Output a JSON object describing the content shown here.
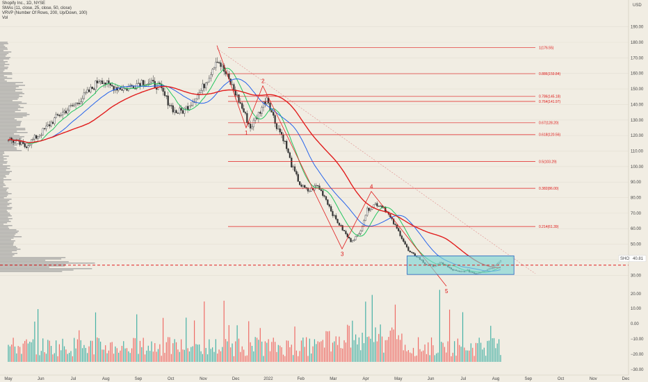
{
  "header": {
    "title": "Shopify Inc., 1D, NYSE",
    "indicators": [
      "SMAs (11, close, 25, close, 50, close)",
      "VRVP (Number Of Rows, 200, Up/Down, 100)",
      "Vol"
    ]
  },
  "currency_label": "USD",
  "ticker": {
    "symbol": "SHOP",
    "price_label": "40.81"
  },
  "colors": {
    "background": "#f1ede3",
    "up": "#26a69a",
    "down": "#ef5350",
    "candle": "#333333",
    "sma11": "#22c55e",
    "sma25": "#2563eb",
    "sma50": "#e11d1d",
    "fib": "#e11d1d",
    "box": "#7fd4d4",
    "profile": "#9a9a9a"
  },
  "chart_data": {
    "type": "candlestick",
    "x_labels": [
      "May",
      "Jun",
      "Jul",
      "Aug",
      "Sep",
      "Oct",
      "Nov",
      "Dec",
      "2022",
      "Feb",
      "Mar",
      "Apr",
      "May",
      "Jun",
      "Jul",
      "Aug",
      "Sep",
      "Oct",
      "Nov",
      "Dec"
    ],
    "y_ticks": [
      190,
      180,
      170,
      160,
      150,
      140,
      130,
      120,
      110,
      100,
      90,
      80,
      70,
      60,
      50,
      40,
      30
    ],
    "y_labels": [
      "190.00",
      "180.00",
      "170.00",
      "160.00",
      "150.00",
      "140.00",
      "130.00",
      "120.00",
      "110.00",
      "100.00",
      "90.00",
      "80.00",
      "70.00",
      "60.00",
      "50.00",
      "40.00",
      "30.00"
    ],
    "ylim": [
      27,
      200
    ],
    "vol_labels": [
      "20.00",
      "10.00",
      "0.00",
      "−10.00",
      "−20.00",
      "−30.00"
    ],
    "price_path": [
      [
        0,
        118
      ],
      [
        2,
        113
      ],
      [
        4,
        122
      ],
      [
        6,
        133
      ],
      [
        8,
        140
      ],
      [
        10,
        150
      ],
      [
        11,
        157
      ],
      [
        12,
        152
      ],
      [
        14,
        150
      ],
      [
        16,
        155
      ],
      [
        18,
        152
      ],
      [
        19,
        143
      ],
      [
        20,
        135
      ],
      [
        21,
        136
      ],
      [
        22,
        142
      ],
      [
        23,
        148
      ],
      [
        24,
        158
      ],
      [
        25,
        170
      ],
      [
        26,
        160
      ],
      [
        27,
        150
      ],
      [
        28,
        138
      ],
      [
        29,
        125
      ],
      [
        30,
        134
      ],
      [
        31,
        145
      ],
      [
        32,
        128
      ],
      [
        33,
        118
      ],
      [
        34,
        100
      ],
      [
        35,
        88
      ],
      [
        36,
        84
      ],
      [
        37,
        88
      ],
      [
        38,
        80
      ],
      [
        39,
        68
      ],
      [
        40,
        60
      ],
      [
        41,
        52
      ],
      [
        42,
        56
      ],
      [
        43,
        72
      ],
      [
        44,
        76
      ],
      [
        45,
        74
      ],
      [
        46,
        65
      ],
      [
        47,
        56
      ],
      [
        48,
        45
      ],
      [
        49,
        42
      ],
      [
        50,
        37
      ],
      [
        51,
        36
      ],
      [
        52,
        38
      ],
      [
        53,
        34
      ],
      [
        54,
        32
      ],
      [
        55,
        33
      ],
      [
        56,
        31
      ],
      [
        57,
        33
      ],
      [
        58,
        35
      ],
      [
        59,
        40
      ]
    ],
    "fib_levels": [
      {
        "label": "1(176.55)",
        "value": 176.55
      },
      {
        "label": "0.886(159.84)",
        "value": 159.84
      },
      {
        "label": "0.786(145.18)",
        "value": 145.18
      },
      {
        "label": "0.764(141.97)",
        "value": 141.97
      },
      {
        "label": "0.67(128.20)",
        "value": 128.2
      },
      {
        "label": "0.618(120.56)",
        "value": 120.56
      },
      {
        "label": "0.5(103.29)",
        "value": 103.29
      },
      {
        "label": "0.382(86.00)",
        "value": 86.0
      },
      {
        "label": "0.214(61.39)",
        "value": 61.39
      }
    ],
    "waves": [
      {
        "label": "1",
        "index": 28.5,
        "price": 125
      },
      {
        "label": "2",
        "index": 30.5,
        "price": 152
      },
      {
        "label": "3",
        "index": 40,
        "price": 47
      },
      {
        "label": "4",
        "index": 43.5,
        "price": 84
      },
      {
        "label": "5",
        "index": 52.5,
        "price": 23
      }
    ],
    "support_level": 36.5,
    "box": {
      "start_index": 47.8,
      "end_index": 60.6,
      "low": 30.5,
      "high": 42.5
    }
  }
}
